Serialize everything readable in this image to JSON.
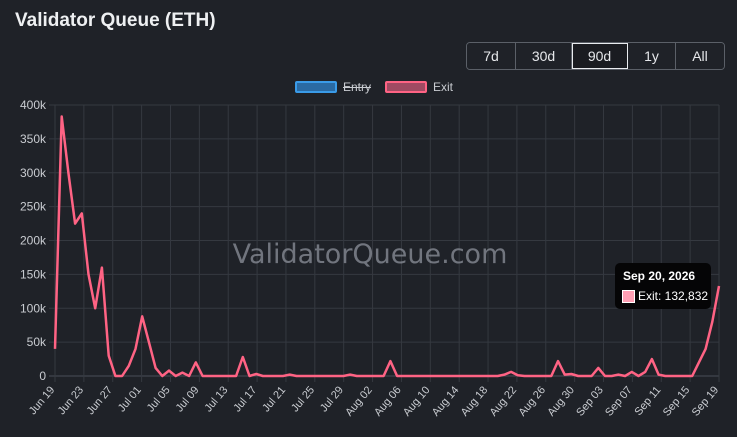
{
  "page": {
    "title": "Validator Queue (ETH)"
  },
  "range_buttons": [
    {
      "label": "7d",
      "active": false
    },
    {
      "label": "30d",
      "active": false
    },
    {
      "label": "90d",
      "active": true
    },
    {
      "label": "1y",
      "active": false
    },
    {
      "label": "All",
      "active": false
    }
  ],
  "legend": [
    {
      "label": "Entry",
      "hidden": true,
      "color": "#36a2eb"
    },
    {
      "label": "Exit",
      "hidden": false,
      "color": "#ff6384"
    }
  ],
  "watermark": "ValidatorQueue.com",
  "tooltip": {
    "date": "Sep 20, 2026",
    "line": "Exit: 132,832"
  },
  "chart_data": {
    "type": "line",
    "ylim": [
      0,
      400000
    ],
    "ytick_labels": [
      "0",
      "50k",
      "100k",
      "150k",
      "200k",
      "250k",
      "300k",
      "350k",
      "400k"
    ],
    "xtick_labels": [
      "Jun 19",
      "Jun 23",
      "Jun 27",
      "Jul 01",
      "Jul 05",
      "Jul 09",
      "Jul 13",
      "Jul 17",
      "Jul 21",
      "Jul 25",
      "Jul 29",
      "Aug 02",
      "Aug 06",
      "Aug 10",
      "Aug 14",
      "Aug 18",
      "Aug 22",
      "Aug 26",
      "Aug 30",
      "Sep 03",
      "Sep 07",
      "Sep 11",
      "Sep 15",
      "Sep 19"
    ],
    "grid": true,
    "legend_position": "top",
    "series": [
      {
        "name": "Exit",
        "color": "#ff6384",
        "x_start": "Jun 19",
        "values": [
          40000,
          383000,
          300000,
          225000,
          240000,
          150000,
          100000,
          160000,
          30000,
          0,
          0,
          15000,
          40000,
          88000,
          50000,
          12000,
          0,
          8000,
          0,
          5000,
          0,
          20000,
          0,
          0,
          0,
          0,
          0,
          0,
          28000,
          0,
          3000,
          0,
          0,
          0,
          0,
          2000,
          0,
          0,
          0,
          0,
          0,
          0,
          0,
          0,
          2000,
          0,
          0,
          0,
          0,
          0,
          22000,
          0,
          0,
          0,
          0,
          0,
          0,
          0,
          0,
          0,
          0,
          0,
          0,
          0,
          0,
          0,
          0,
          2000,
          6000,
          1000,
          0,
          0,
          0,
          0,
          0,
          22000,
          2000,
          3000,
          0,
          0,
          0,
          12000,
          0,
          0,
          2000,
          0,
          6000,
          0,
          6000,
          25000,
          2000,
          0,
          0,
          0,
          0,
          0,
          20000,
          40000,
          80000,
          132832
        ]
      }
    ]
  }
}
